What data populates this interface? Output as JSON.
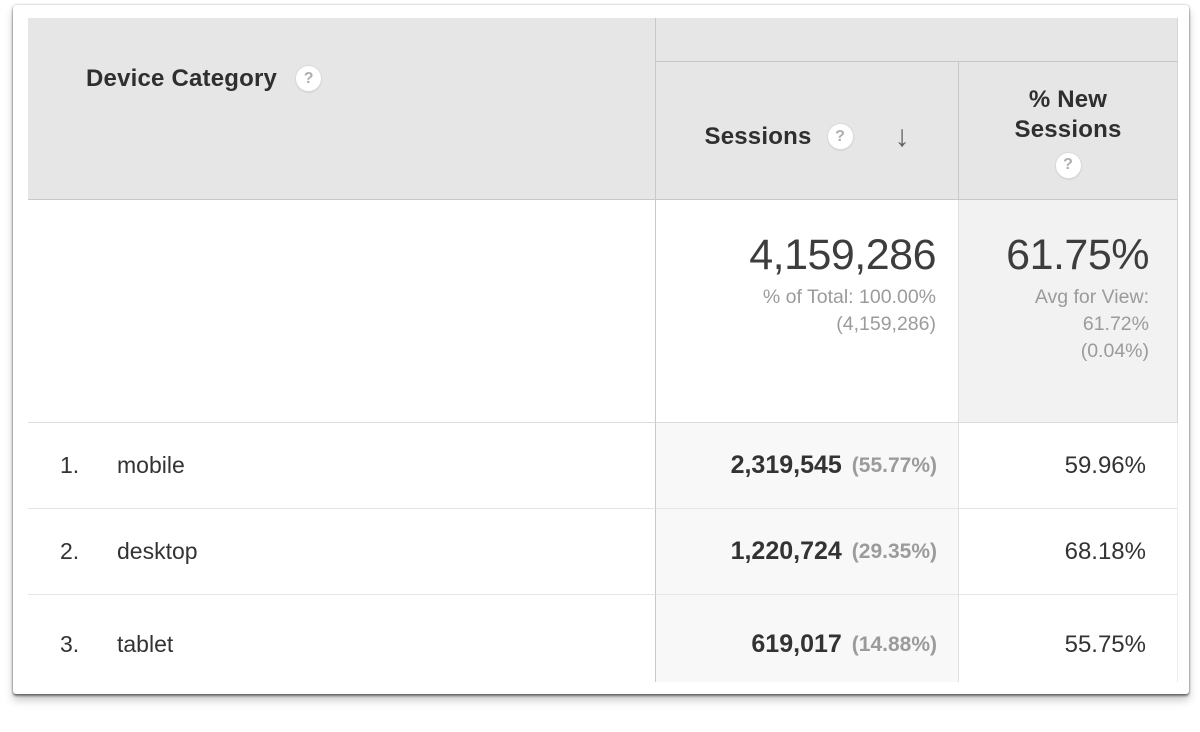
{
  "table": {
    "columns": {
      "device_category": {
        "label": "Device Category",
        "help_glyph": "?"
      },
      "sessions": {
        "label": "Sessions",
        "help_glyph": "?",
        "sort_arrow": "↓"
      },
      "new_sessions": {
        "label": "% New Sessions",
        "help_glyph": "?"
      }
    },
    "summary": {
      "sessions": {
        "value": "4,159,286",
        "pct_of_total": "% of Total: 100.00%",
        "total_paren": "(4,159,286)"
      },
      "new_sessions": {
        "value": "61.75%",
        "avg_label": "Avg for View:",
        "avg_value": "61.72%",
        "delta": "(0.04%)"
      }
    },
    "rows": [
      {
        "index": "1.",
        "device": "mobile",
        "sessions": "2,319,545",
        "sessions_pct": "(55.77%)",
        "new_sessions": "59.96%"
      },
      {
        "index": "2.",
        "device": "desktop",
        "sessions": "1,220,724",
        "sessions_pct": "(29.35%)",
        "new_sessions": "68.18%"
      },
      {
        "index": "3.",
        "device": "tablet",
        "sessions": "619,017",
        "sessions_pct": "(14.88%)",
        "new_sessions": "55.75%"
      }
    ],
    "colors": {
      "header_bg": "#e6e6e6",
      "sorted_column_bg": "#f8f8f8",
      "summary_highlight_bg": "#f2f2f2",
      "header_border": "#c8c8c8",
      "row_border": "#e5e5e5",
      "text": "#333333",
      "muted_text": "#9b9b9b"
    }
  }
}
